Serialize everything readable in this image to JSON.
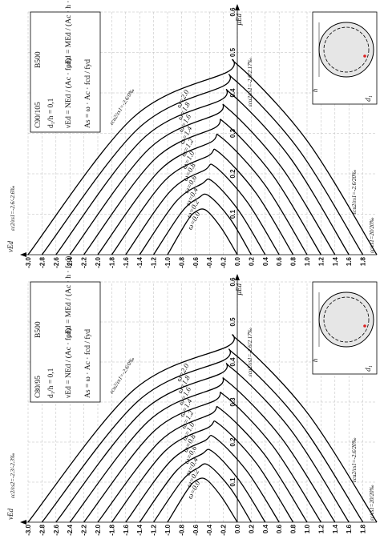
{
  "chart_data": [
    {
      "type": "line",
      "concrete": "C90/105",
      "steel": "B500",
      "ratio": "d₁/h = 0,1",
      "formula_nu": "νEd = NEd / (Ac · fcd)",
      "formula_mu": "μEd = MEd / (Ac · h · fcd)",
      "formula_as": "As = ω · Ac · fcd / fyd",
      "x_label": "νEd",
      "y_label": "μEd",
      "section_labels": [
        "h",
        "d₁"
      ],
      "annotations": [
        "εc2/εs1=-2.6/-2.6‰",
        "εcu2/εs1=-2.6/0‰",
        "εcu2/εs1=-2.6/2.17‰",
        "εcu2/εs1=-2.6/20‰",
        "εc/εs1=20/20‰"
      ],
      "xlim": [
        -3.0,
        2.0
      ],
      "xticks": [
        {
          "value": -3,
          "label": "-3.0"
        },
        -2.8,
        -2.6,
        -2.4,
        -2.2,
        {
          "value": -2,
          "label": "-2.0"
        },
        -1.8,
        -1.6,
        -1.4,
        -1.2,
        {
          "value": -1,
          "label": "-1.0"
        },
        -0.8,
        -0.6,
        -0.4,
        -0.2,
        {
          "value": 0,
          "label": "0.0"
        },
        0.2,
        0.4,
        0.6,
        0.8,
        {
          "value": 1,
          "label": "1.0"
        },
        1.2,
        1.4,
        1.6,
        1.8
      ],
      "ylim": [
        0,
        0.6
      ],
      "yticks": [
        0.1,
        0.2,
        0.3,
        0.4,
        0.5,
        0.6
      ],
      "grid": true,
      "series": [
        {
          "name": "ω=0.0",
          "color": "#000000",
          "x": [
            -1.0,
            -0.73,
            -0.6,
            -0.45,
            -0.23,
            0.0
          ],
          "values": [
            0,
            0.08,
            0.106,
            0.11,
            0.066,
            0
          ]
        },
        {
          "name": "ω=0.2",
          "color": "#000000",
          "x": [
            -1.2,
            -0.8,
            -0.56,
            -0.41,
            -0.1,
            0.2
          ],
          "values": [
            0,
            0.105,
            0.14,
            0.146,
            0.088,
            0
          ]
        },
        {
          "name": "ω=0.4",
          "color": "#000000",
          "x": [
            -1.4,
            -0.88,
            -0.51,
            -0.36,
            0.02,
            0.4
          ],
          "values": [
            0,
            0.131,
            0.175,
            0.182,
            0.109,
            0
          ]
        },
        {
          "name": "ω=0.6",
          "color": "#000000",
          "x": [
            -1.6,
            -0.96,
            -0.47,
            -0.32,
            0.14,
            0.6
          ],
          "values": [
            0,
            0.157,
            0.209,
            0.218,
            0.131,
            0
          ]
        },
        {
          "name": "ω=0.8",
          "color": "#000000",
          "x": [
            -1.8,
            -1.04,
            -0.42,
            -0.27,
            0.27,
            0.8
          ],
          "values": [
            0,
            0.183,
            0.244,
            0.254,
            0.152,
            0
          ]
        },
        {
          "name": "ω=1.0",
          "color": "#000000",
          "x": [
            -2.0,
            -1.11,
            -0.38,
            -0.23,
            0.39,
            1.0
          ],
          "values": [
            0,
            0.209,
            0.278,
            0.29,
            0.174,
            0
          ]
        },
        {
          "name": "ω=1.2",
          "color": "#000000",
          "x": [
            -2.2,
            -1.19,
            -0.33,
            -0.18,
            0.51,
            1.2
          ],
          "values": [
            0,
            0.235,
            0.313,
            0.326,
            0.196,
            0
          ]
        },
        {
          "name": "ω=1.4",
          "color": "#000000",
          "x": [
            -2.4,
            -1.27,
            -0.29,
            -0.14,
            0.63,
            1.4
          ],
          "values": [
            0,
            0.261,
            0.348,
            0.362,
            0.217,
            0
          ]
        },
        {
          "name": "ω=1.6",
          "color": "#000000",
          "x": [
            -2.6,
            -1.35,
            -0.24,
            -0.09,
            0.76,
            1.6
          ],
          "values": [
            0,
            0.287,
            0.382,
            0.398,
            0.239,
            0
          ]
        },
        {
          "name": "ω=1.8",
          "color": "#000000",
          "x": [
            -2.8,
            -1.42,
            -0.2,
            -0.05,
            0.88,
            1.8
          ],
          "values": [
            0,
            0.312,
            0.417,
            0.434,
            0.26,
            0
          ]
        },
        {
          "name": "ω=2.0",
          "color": "#000000",
          "x": [
            -3.0,
            -1.5,
            -0.15,
            0,
            1.0,
            2.0
          ],
          "values": [
            0,
            0.338,
            0.451,
            0.47,
            0.282,
            0
          ]
        }
      ]
    },
    {
      "type": "line",
      "concrete": "C80/95",
      "steel": "B500",
      "ratio": "d₁/h = 0,1",
      "formula_nu": "νEd = NEd / (Ac · fcd)",
      "formula_mu": "μEd = MEd / (Ac · h · fcd)",
      "formula_as": "As = ω · Ac · fcd / fyd",
      "x_label": "νEd",
      "y_label": "μEd",
      "section_labels": [
        "h",
        "d₁"
      ],
      "annotations": [
        "εc2/εs2=-2.3/-2.3‰",
        "εcu2/εs1=-2.6/0‰",
        "εcu2/εs1=-2.6/2.17‰",
        "εcu2/εs1=-2.6/20‰",
        "εc/εs1=20/20‰"
      ],
      "xlim": [
        -3.0,
        2.0
      ],
      "xticks": [
        {
          "value": -3,
          "label": "-3.0"
        },
        -2.8,
        -2.6,
        -2.4,
        -2.2,
        {
          "value": -2,
          "label": "-2.0"
        },
        -1.8,
        -1.6,
        -1.4,
        -1.2,
        {
          "value": -1,
          "label": "-1.0"
        },
        -0.8,
        -0.6,
        -0.4,
        -0.2,
        {
          "value": 0,
          "label": "0.0"
        },
        0.2,
        0.4,
        0.6,
        0.8,
        {
          "value": 1,
          "label": "1.0"
        },
        1.2,
        1.4,
        1.6,
        1.8
      ],
      "ylim": [
        0,
        0.6
      ],
      "yticks": [
        0.1,
        0.2,
        0.3,
        0.4,
        0.5,
        0.6
      ],
      "grid": true,
      "series": [
        {
          "name": "ω=0.0",
          "color": "#000000",
          "x": [
            -1.0,
            -0.73,
            -0.6,
            -0.45,
            -0.23,
            0.0
          ],
          "values": [
            0,
            0.077,
            0.103,
            0.107,
            0.064,
            0
          ]
        },
        {
          "name": "ω=0.2",
          "color": "#000000",
          "x": [
            -1.2,
            -0.8,
            -0.56,
            -0.41,
            -0.1,
            0.2
          ],
          "values": [
            0,
            0.102,
            0.136,
            0.142,
            0.085,
            0
          ]
        },
        {
          "name": "ω=0.4",
          "color": "#000000",
          "x": [
            -1.4,
            -0.88,
            -0.51,
            -0.36,
            0.02,
            0.4
          ],
          "values": [
            0,
            0.127,
            0.17,
            0.177,
            0.106,
            0
          ]
        },
        {
          "name": "ω=0.6",
          "color": "#000000",
          "x": [
            -1.6,
            -0.96,
            -0.47,
            -0.32,
            0.14,
            0.6
          ],
          "values": [
            0,
            0.152,
            0.203,
            0.211,
            0.127,
            0
          ]
        },
        {
          "name": "ω=0.8",
          "color": "#000000",
          "x": [
            -1.8,
            -1.04,
            -0.42,
            -0.27,
            0.27,
            0.8
          ],
          "values": [
            0,
            0.177,
            0.236,
            0.246,
            0.148,
            0
          ]
        },
        {
          "name": "ω=1.0",
          "color": "#000000",
          "x": [
            -2.0,
            -1.11,
            -0.38,
            -0.23,
            0.39,
            1.0
          ],
          "values": [
            0,
            0.202,
            0.27,
            0.281,
            0.169,
            0
          ]
        },
        {
          "name": "ω=1.2",
          "color": "#000000",
          "x": [
            -2.2,
            -1.19,
            -0.33,
            -0.18,
            0.51,
            1.2
          ],
          "values": [
            0,
            0.228,
            0.303,
            0.316,
            0.19,
            0
          ]
        },
        {
          "name": "ω=1.4",
          "color": "#000000",
          "x": [
            -2.4,
            -1.27,
            -0.29,
            -0.14,
            0.63,
            1.4
          ],
          "values": [
            0,
            0.253,
            0.337,
            0.351,
            0.211,
            0
          ]
        },
        {
          "name": "ω=1.6",
          "color": "#000000",
          "x": [
            -2.6,
            -1.35,
            -0.24,
            -0.09,
            0.76,
            1.6
          ],
          "values": [
            0,
            0.278,
            0.371,
            0.386,
            0.232,
            0
          ]
        },
        {
          "name": "ω=1.8",
          "color": "#000000",
          "x": [
            -2.8,
            -1.42,
            -0.2,
            -0.05,
            0.88,
            1.8
          ],
          "values": [
            0,
            0.303,
            0.404,
            0.421,
            0.253,
            0
          ]
        },
        {
          "name": "ω=2.0",
          "color": "#000000",
          "x": [
            -3.0,
            -1.5,
            -0.15,
            0,
            1.0,
            2.0
          ],
          "values": [
            0,
            0.328,
            0.438,
            0.456,
            0.274,
            0
          ]
        }
      ]
    }
  ]
}
